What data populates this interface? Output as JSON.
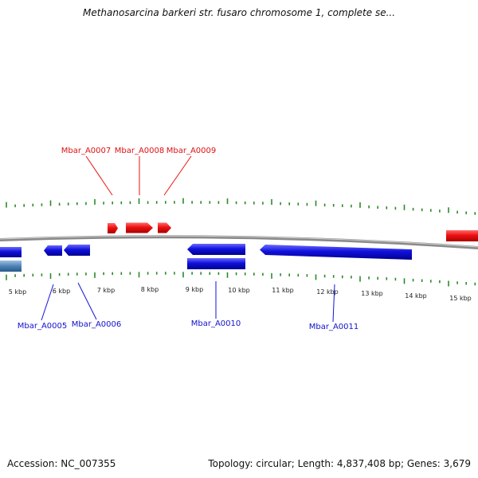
{
  "title": "Methanosarcina barkeri str. fusaro chromosome 1, complete se...",
  "footer": {
    "accession": "Accession: NC_007355",
    "summary": "Topology: circular; Length: 4,837,408 bp; Genes: 3,679"
  },
  "colors": {
    "forward": "#ee1111",
    "reverse": "#1111dd",
    "other": "#4d82b8",
    "backbone": "#8a8a8a",
    "ticks": "#2a8a2a"
  },
  "scale": {
    "unit": "kbp",
    "labels": [
      "5 kbp",
      "6 kbp",
      "7 kbp",
      "8 kbp",
      "9 kbp",
      "10 kbp",
      "11 kbp",
      "12 kbp",
      "13 kbp",
      "14 kbp",
      "15 kbp"
    ]
  },
  "gene_labels": {
    "forward": [
      "Mbar_A0007",
      "Mbar_A0008",
      "Mbar_A0009"
    ],
    "reverse": [
      "Mbar_A0005",
      "Mbar_A0006",
      "Mbar_A0010",
      "Mbar_A0011"
    ]
  }
}
